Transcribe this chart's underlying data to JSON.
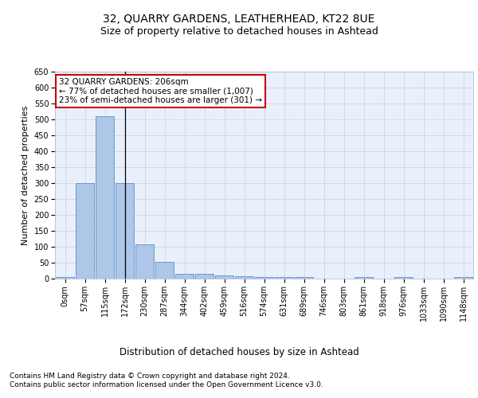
{
  "title1": "32, QUARRY GARDENS, LEATHERHEAD, KT22 8UE",
  "title2": "Size of property relative to detached houses in Ashtead",
  "xlabel": "Distribution of detached houses by size in Ashtead",
  "ylabel": "Number of detached properties",
  "bar_labels": [
    "0sqm",
    "57sqm",
    "115sqm",
    "172sqm",
    "230sqm",
    "287sqm",
    "344sqm",
    "402sqm",
    "459sqm",
    "516sqm",
    "574sqm",
    "631sqm",
    "689sqm",
    "746sqm",
    "803sqm",
    "861sqm",
    "918sqm",
    "976sqm",
    "1033sqm",
    "1090sqm",
    "1148sqm"
  ],
  "bar_heights": [
    5,
    300,
    510,
    300,
    107,
    53,
    14,
    15,
    11,
    8,
    5,
    4,
    4,
    0,
    0,
    5,
    0,
    5,
    0,
    0,
    4
  ],
  "bar_color": "#aec6e8",
  "bar_edge_color": "#5b8fc9",
  "annotation_text": "32 QUARRY GARDENS: 206sqm\n← 77% of detached houses are smaller (1,007)\n23% of semi-detached houses are larger (301) →",
  "annotation_box_color": "#ffffff",
  "annotation_box_edge": "#cc0000",
  "vline_x": 3,
  "vline_color": "#000000",
  "ylim": [
    0,
    650
  ],
  "yticks": [
    0,
    50,
    100,
    150,
    200,
    250,
    300,
    350,
    400,
    450,
    500,
    550,
    600,
    650
  ],
  "footer1": "Contains HM Land Registry data © Crown copyright and database right 2024.",
  "footer2": "Contains public sector information licensed under the Open Government Licence v3.0.",
  "plot_bg_color": "#eaf0fb",
  "title1_fontsize": 10,
  "title2_fontsize": 9,
  "xlabel_fontsize": 8.5,
  "ylabel_fontsize": 8,
  "tick_fontsize": 7,
  "footer_fontsize": 6.5,
  "annotation_fontsize": 7.5
}
